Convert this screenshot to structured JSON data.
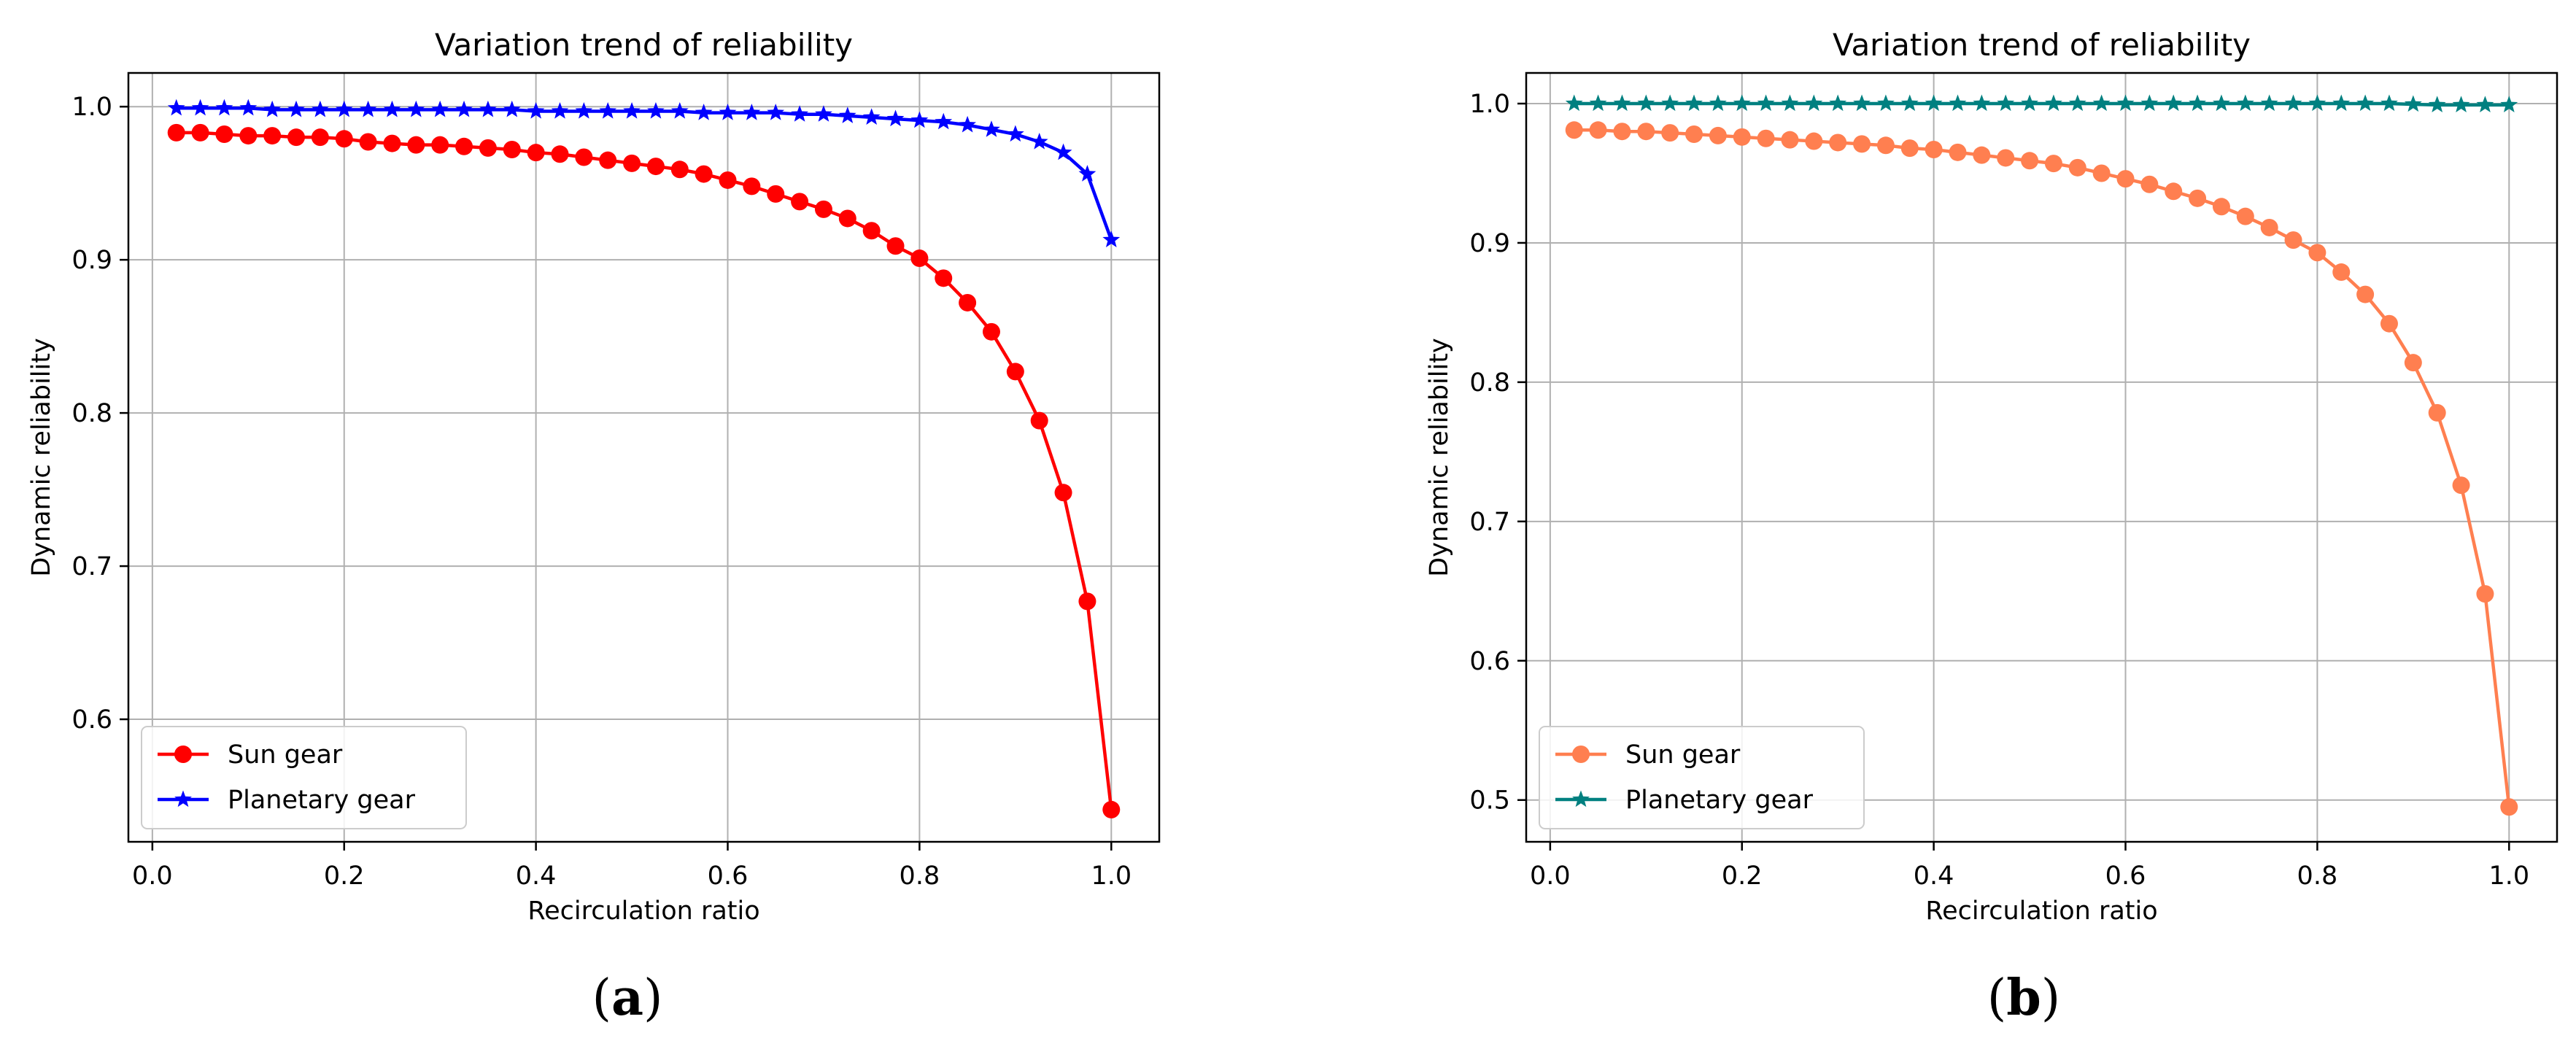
{
  "chart_data": [
    {
      "type": "line",
      "title": "Variation trend of reliability",
      "xlabel": "Recirculation ratio",
      "ylabel": "Dynamic reliability",
      "xlim": [
        -0.025,
        1.05
      ],
      "ylim": [
        0.52,
        1.022
      ],
      "xticks": [
        0.0,
        0.2,
        0.4,
        0.6,
        0.8,
        1.0
      ],
      "xtick_labels": [
        "0.0",
        "0.2",
        "0.4",
        "0.6",
        "0.8",
        "1.0"
      ],
      "yticks": [
        0.6,
        0.7,
        0.8,
        0.9,
        1.0
      ],
      "ytick_labels": [
        "0.6",
        "0.7",
        "0.8",
        "0.9",
        "1.0"
      ],
      "grid": true,
      "legend_position": "lower-left",
      "x": [
        0.025,
        0.05,
        0.075,
        0.1,
        0.125,
        0.15,
        0.175,
        0.2,
        0.225,
        0.25,
        0.275,
        0.3,
        0.325,
        0.35,
        0.375,
        0.4,
        0.425,
        0.45,
        0.475,
        0.5,
        0.525,
        0.55,
        0.575,
        0.6,
        0.625,
        0.65,
        0.675,
        0.7,
        0.725,
        0.75,
        0.775,
        0.8,
        0.825,
        0.85,
        0.875,
        0.9,
        0.925,
        0.95,
        0.975,
        1.0
      ],
      "series": [
        {
          "name": "Sun gear",
          "color": "#ff0000",
          "marker": "circle",
          "values": [
            0.983,
            0.983,
            0.982,
            0.981,
            0.981,
            0.98,
            0.98,
            0.979,
            0.977,
            0.976,
            0.975,
            0.975,
            0.974,
            0.973,
            0.972,
            0.97,
            0.969,
            0.967,
            0.965,
            0.963,
            0.961,
            0.959,
            0.956,
            0.952,
            0.948,
            0.943,
            0.938,
            0.933,
            0.927,
            0.919,
            0.909,
            0.901,
            0.888,
            0.872,
            0.853,
            0.827,
            0.795,
            0.748,
            0.677,
            0.541
          ]
        },
        {
          "name": "Planetary gear",
          "color": "#0000ff",
          "marker": "star",
          "values": [
            0.999,
            0.999,
            0.999,
            0.999,
            0.998,
            0.998,
            0.998,
            0.998,
            0.998,
            0.998,
            0.998,
            0.998,
            0.998,
            0.998,
            0.998,
            0.997,
            0.997,
            0.997,
            0.997,
            0.997,
            0.997,
            0.997,
            0.996,
            0.996,
            0.996,
            0.996,
            0.995,
            0.995,
            0.994,
            0.993,
            0.992,
            0.991,
            0.99,
            0.988,
            0.985,
            0.982,
            0.977,
            0.97,
            0.956,
            0.913
          ]
        }
      ]
    },
    {
      "type": "line",
      "title": "Variation trend of reliability",
      "xlabel": "Recirculation ratio",
      "ylabel": "Dynamic reliability",
      "xlim": [
        -0.025,
        1.05
      ],
      "ylim": [
        0.47,
        1.022
      ],
      "xticks": [
        0.0,
        0.2,
        0.4,
        0.6,
        0.8,
        1.0
      ],
      "xtick_labels": [
        "0.0",
        "0.2",
        "0.4",
        "0.6",
        "0.8",
        "1.0"
      ],
      "yticks": [
        0.5,
        0.6,
        0.7,
        0.8,
        0.9,
        1.0
      ],
      "ytick_labels": [
        "0.5",
        "0.6",
        "0.7",
        "0.8",
        "0.9",
        "1.0"
      ],
      "grid": true,
      "legend_position": "lower-left",
      "x": [
        0.025,
        0.05,
        0.075,
        0.1,
        0.125,
        0.15,
        0.175,
        0.2,
        0.225,
        0.25,
        0.275,
        0.3,
        0.325,
        0.35,
        0.375,
        0.4,
        0.425,
        0.45,
        0.475,
        0.5,
        0.525,
        0.55,
        0.575,
        0.6,
        0.625,
        0.65,
        0.675,
        0.7,
        0.725,
        0.75,
        0.775,
        0.8,
        0.825,
        0.85,
        0.875,
        0.9,
        0.925,
        0.95,
        0.975,
        1.0
      ],
      "series": [
        {
          "name": "Sun gear",
          "color": "#ff7f50",
          "marker": "circle",
          "values": [
            0.981,
            0.981,
            0.98,
            0.98,
            0.979,
            0.978,
            0.977,
            0.976,
            0.975,
            0.974,
            0.973,
            0.972,
            0.971,
            0.97,
            0.968,
            0.967,
            0.965,
            0.963,
            0.961,
            0.959,
            0.957,
            0.954,
            0.95,
            0.946,
            0.942,
            0.937,
            0.932,
            0.926,
            0.919,
            0.911,
            0.902,
            0.893,
            0.879,
            0.863,
            0.842,
            0.814,
            0.778,
            0.726,
            0.648,
            0.495
          ]
        },
        {
          "name": "Planetary gear",
          "color": "#008080",
          "marker": "star",
          "values": [
            1.0,
            1.0,
            1.0,
            1.0,
            1.0,
            1.0,
            1.0,
            1.0,
            1.0,
            1.0,
            1.0,
            1.0,
            1.0,
            1.0,
            1.0,
            1.0,
            1.0,
            1.0,
            1.0,
            1.0,
            1.0,
            1.0,
            1.0,
            1.0,
            1.0,
            1.0,
            1.0,
            1.0,
            1.0,
            1.0,
            1.0,
            1.0,
            1.0,
            1.0,
            1.0,
            0.9995,
            0.999,
            0.999,
            0.999,
            0.999
          ]
        }
      ]
    }
  ],
  "panel_labels": [
    "a",
    "b"
  ]
}
